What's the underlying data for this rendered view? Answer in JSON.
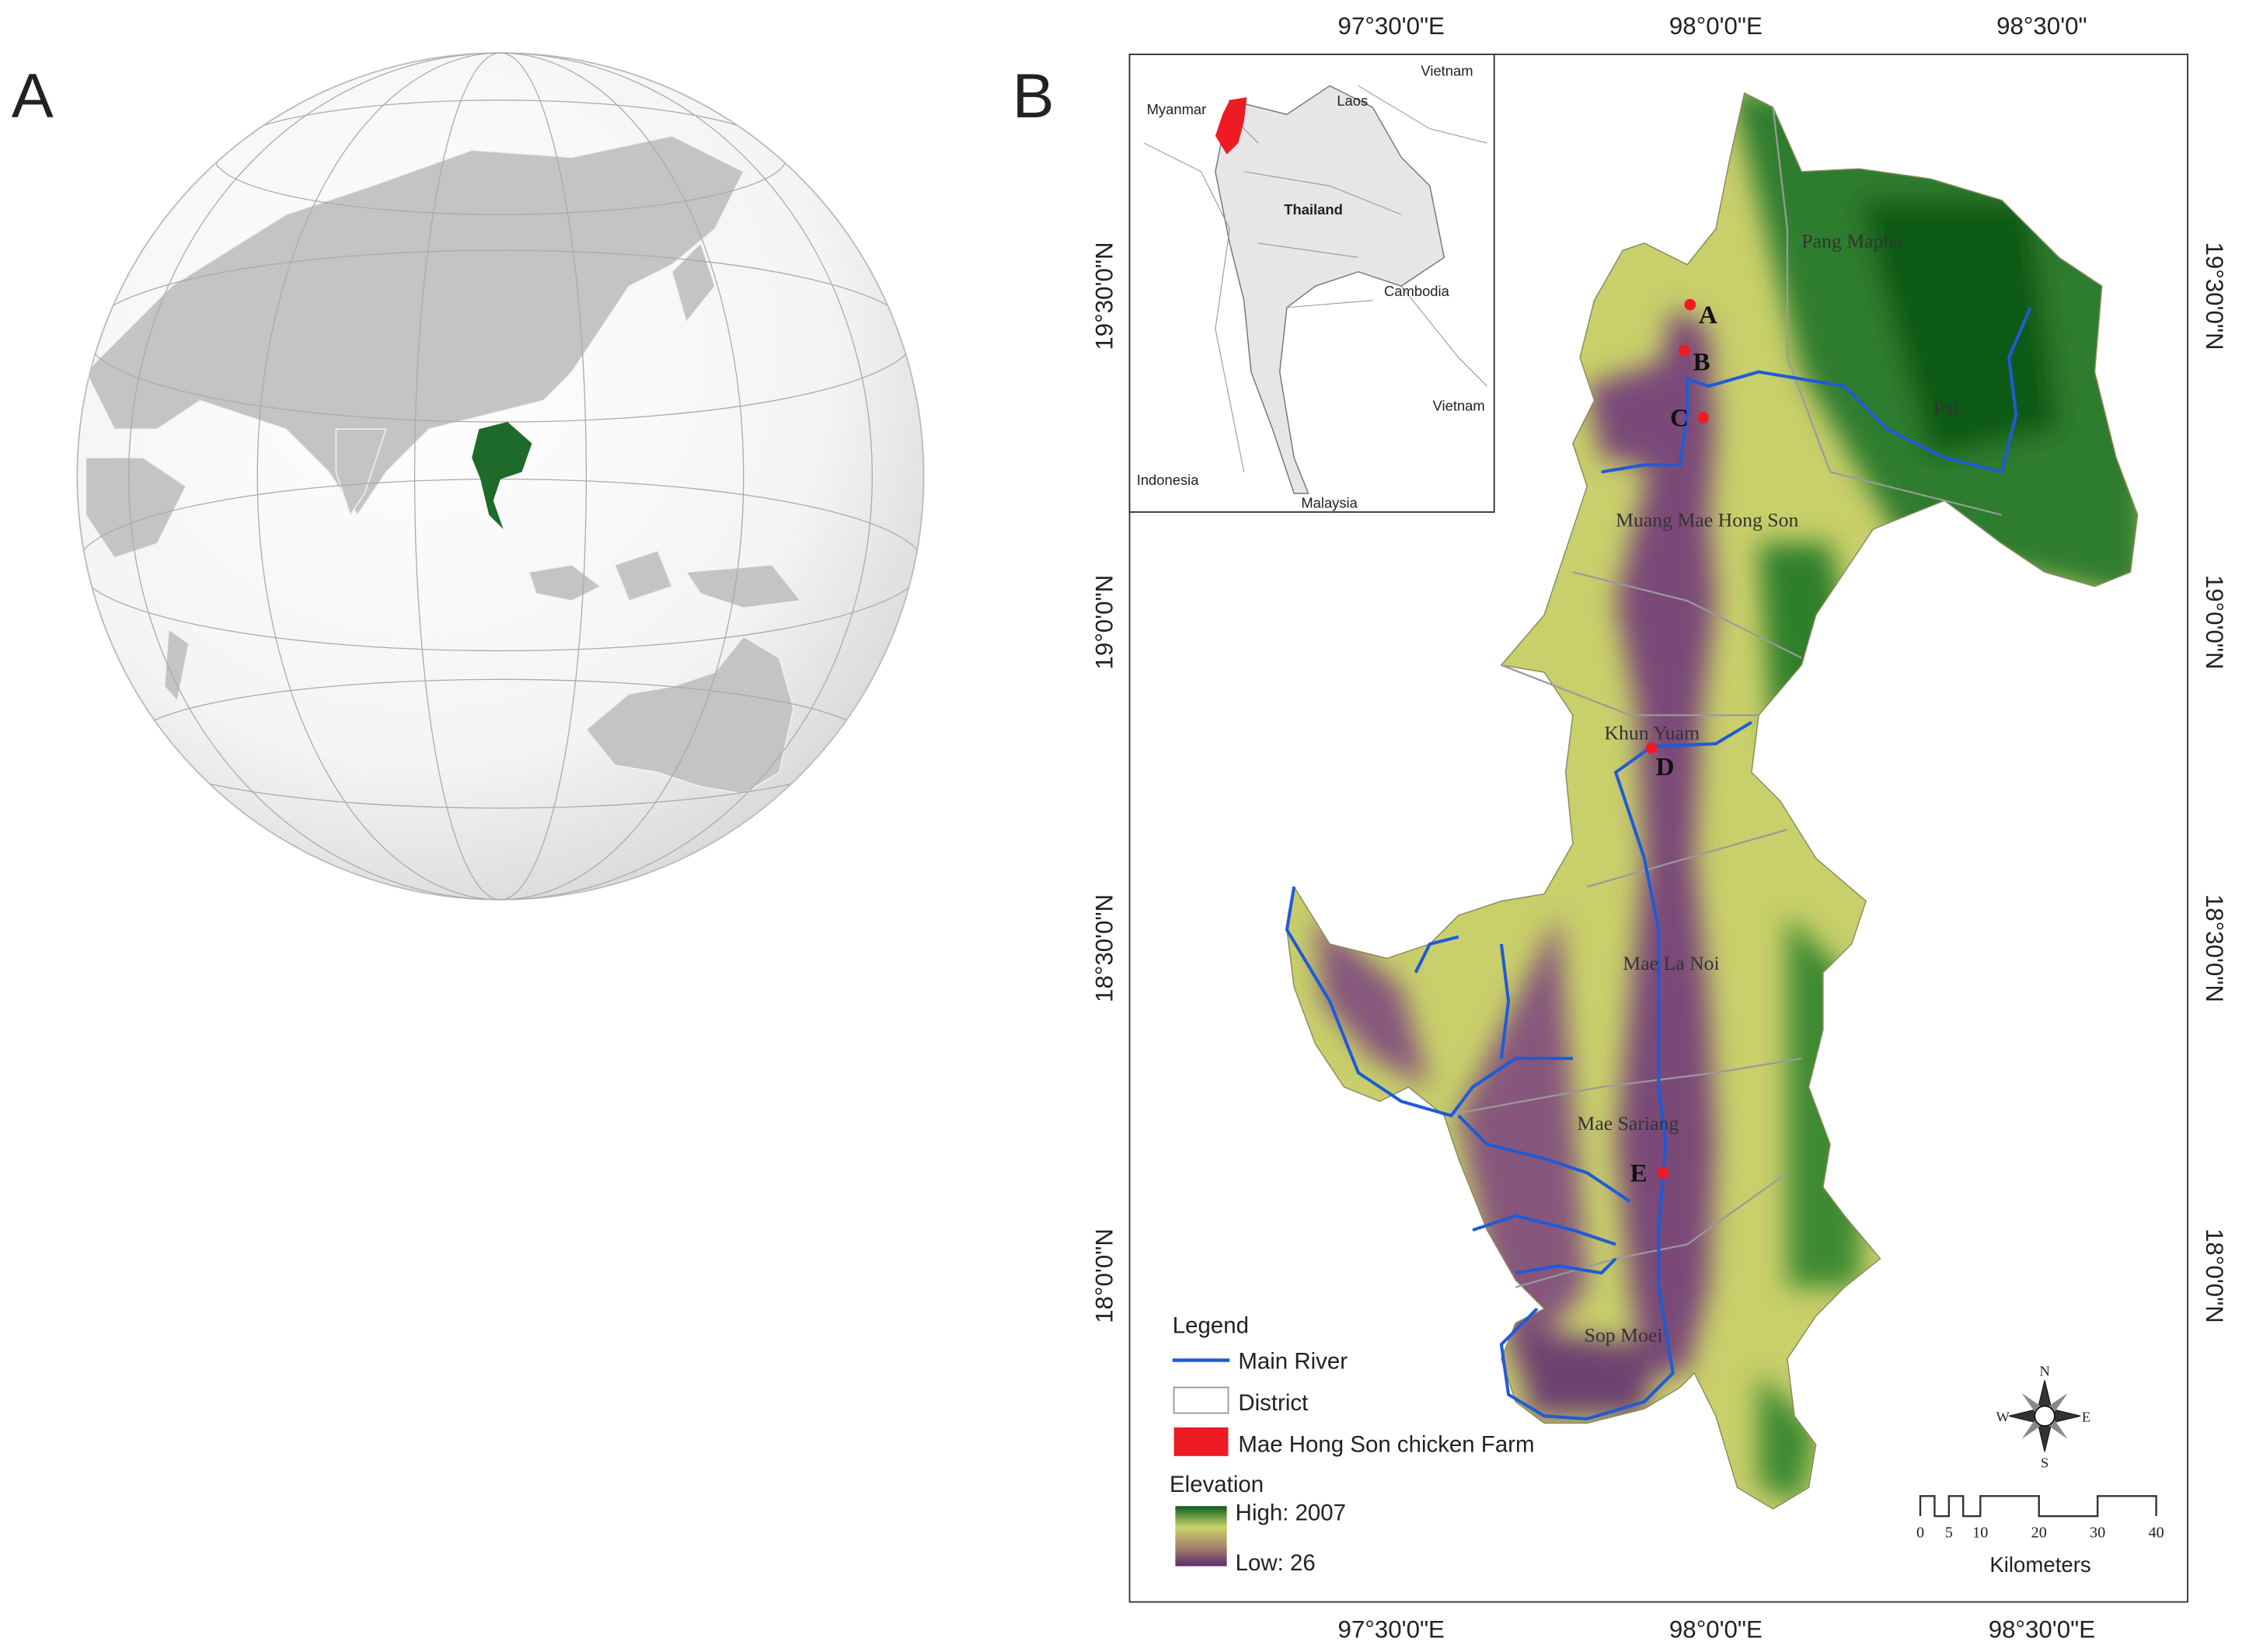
{
  "panel_a": {
    "label": "A"
  },
  "panel_b": {
    "label": "B",
    "top_longitudes": [
      "97°30'0\"E",
      "98°0'0\"E",
      "98°30'0\""
    ],
    "bottom_longitudes": [
      "97°30'0\"E",
      "98°0'0\"E",
      "98°30'0\"E"
    ],
    "left_latitudes": [
      "19°30'0\"N",
      "19°0'0\"N",
      "18°30'0\"N",
      "18°0'0\"N"
    ],
    "right_latitudes": [
      "19°30'0\"N",
      "19°0'0\"N",
      "18°30'0\"N",
      "18°0'0\"N"
    ],
    "inset": {
      "countries": [
        "Vietnam",
        "Myanmar",
        "Laos",
        "Thailand",
        "Cambodia",
        "Vietnam",
        "Indonesia",
        "Malaysia"
      ]
    },
    "districts": [
      "Pang Mapha",
      "Pai",
      "Muang Mae Hong Son",
      "Khun Yuam",
      "Mae La Noi",
      "Mae Sariang",
      "Sop Moei"
    ],
    "sites": [
      "A",
      "B",
      "C",
      "D",
      "E"
    ],
    "legend": {
      "title": "Legend",
      "items": [
        "Main River",
        "District",
        "Mae Hong Son chicken Farm"
      ],
      "elevation_title": "Elevation",
      "high": "High:  2007",
      "low": "Low: 26"
    },
    "compass": [
      "N",
      "E",
      "S",
      "W"
    ],
    "scale_bar": {
      "ticks": [
        "0",
        "5",
        "10",
        "20",
        "30",
        "40"
      ],
      "unit": "Kilometers"
    }
  }
}
